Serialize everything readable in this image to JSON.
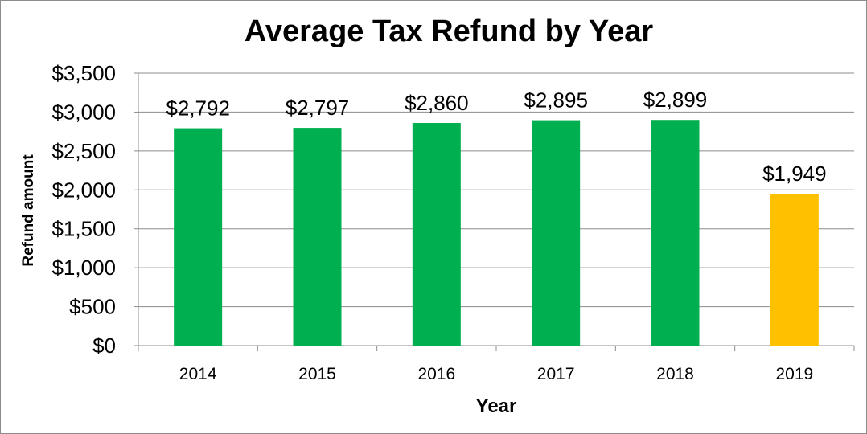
{
  "chart_data": {
    "type": "bar",
    "title": "Average Tax Refund by Year",
    "xlabel": "Year",
    "ylabel": "Refund amount",
    "categories": [
      "2014",
      "2015",
      "2016",
      "2017",
      "2018",
      "2019"
    ],
    "values": [
      2792,
      2797,
      2860,
      2895,
      2899,
      1949
    ],
    "data_labels": [
      "$2,792",
      "$2,797",
      "$2,860",
      "$2,895",
      "$2,899",
      "$1,949"
    ],
    "bar_colors": [
      "#00b050",
      "#00b050",
      "#00b050",
      "#00b050",
      "#00b050",
      "#ffc000"
    ],
    "ylim": [
      0,
      3500
    ],
    "y_ticks": [
      0,
      500,
      1000,
      1500,
      2000,
      2500,
      3000,
      3500
    ],
    "y_tick_labels": [
      "$0",
      "$500",
      "$1,000",
      "$1,500",
      "$2,000",
      "$2,500",
      "$3,000",
      "$3,500"
    ],
    "grid": true,
    "legend": "none"
  }
}
